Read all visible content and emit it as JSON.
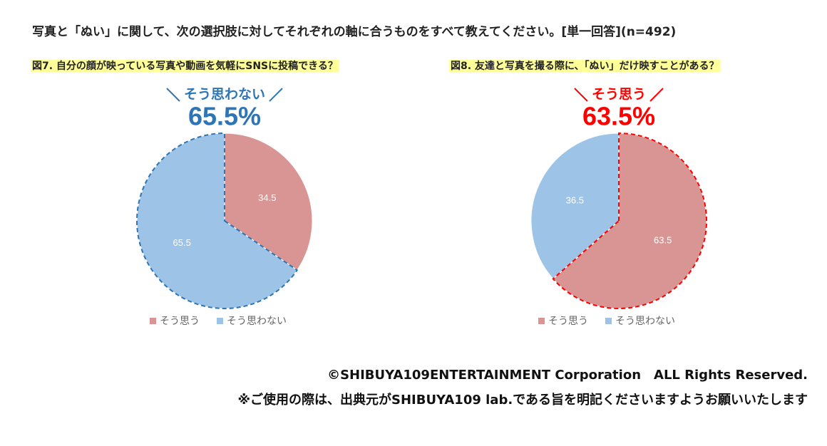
{
  "header": {
    "title": "写真と「ぬい」に関して、次の選択肢に対してそれぞれの軸に合うものをすべて教えてください。[単一回答](n=492)"
  },
  "chart_data": [
    {
      "type": "pie",
      "title": "図7. 自分の顔が映っている写真や動画を気軽にSNSに投稿できる？",
      "categories": [
        "そう思う",
        "そう思わない"
      ],
      "values": [
        34.5,
        65.5
      ],
      "colors": [
        "#d99594",
        "#9dc3e6"
      ],
      "highlight": 1,
      "highlight_color": "#2e75b6",
      "callout": {
        "text": "そう思わない",
        "value": "65.5%"
      }
    },
    {
      "type": "pie",
      "title": "図8. 友達と写真を撮る際に、「ぬい」だけ映すことがある？",
      "categories": [
        "そう思う",
        "そう思わない"
      ],
      "values": [
        63.5,
        36.5
      ],
      "colors": [
        "#d99594",
        "#9dc3e6"
      ],
      "highlight": 0,
      "highlight_color": "#ff0000",
      "callout": {
        "text": "そう思う",
        "value": "63.5%"
      }
    }
  ],
  "footer": {
    "copyright": "©SHIBUYA109ENTERTAINMENT Corporation　ALL Rights Reserved.",
    "note": "※ご使用の際は、出典元がSHIBUYA109 lab.である旨を明記くださいますようお願いいたします"
  }
}
